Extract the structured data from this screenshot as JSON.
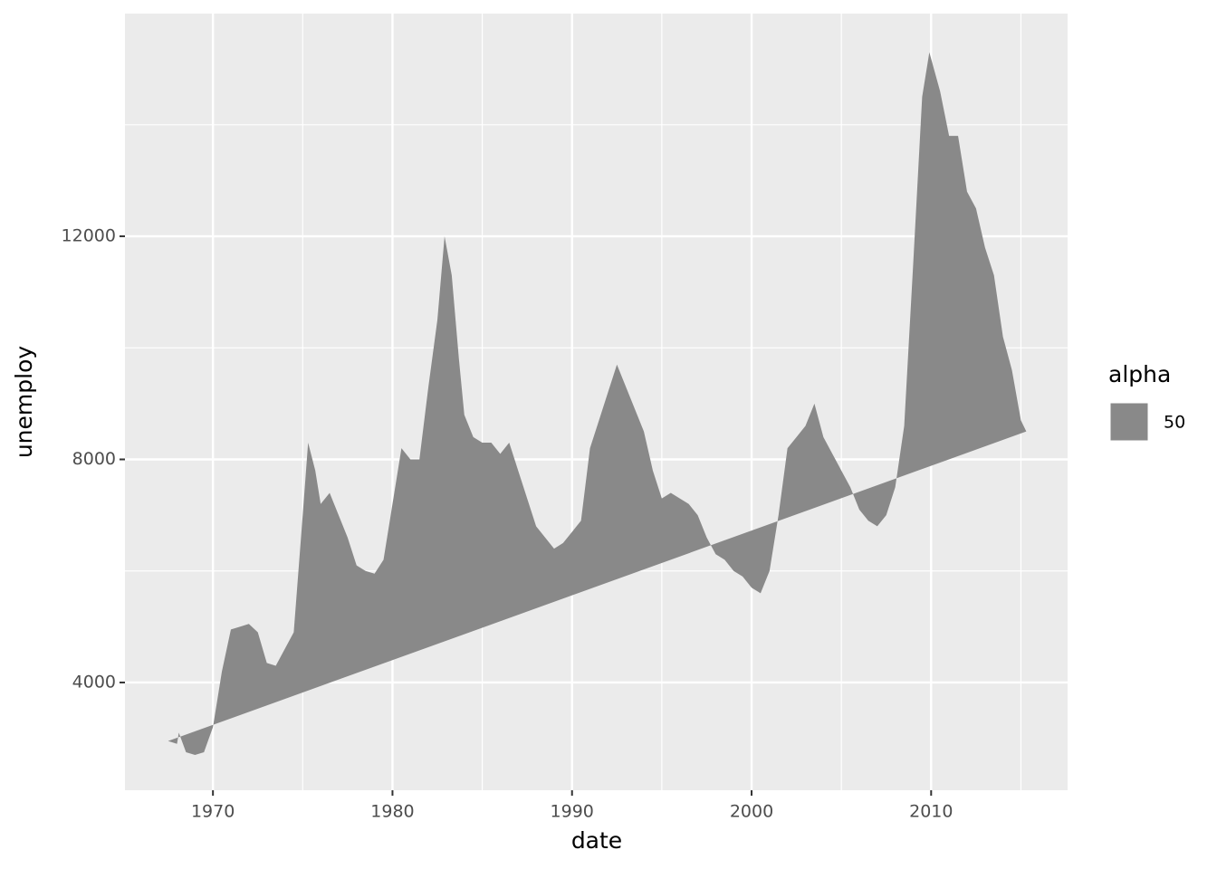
{
  "chart_data": {
    "type": "polygon",
    "x_label": "date",
    "y_label": "unemploy",
    "legend_title": "alpha",
    "xlim": [
      1965.1,
      2017.6
    ],
    "ylim": [
      2068,
      15993
    ],
    "xticks": [
      1970,
      1980,
      1990,
      2000,
      2010
    ],
    "yticks": [
      4000,
      8000,
      12000
    ],
    "x_minor_ticks": [
      1965,
      1975,
      1985,
      1995,
      2005,
      2015
    ],
    "y_minor_ticks": [
      6000,
      10000,
      14000
    ],
    "grid": true,
    "x": [
      1967.5,
      1968.0,
      1968.1,
      1968.5,
      1969.0,
      1969.5,
      1970.0,
      1970.5,
      1971.0,
      1971.5,
      1972.0,
      1972.5,
      1973.0,
      1973.5,
      1974.0,
      1974.5,
      1975.0,
      1975.3,
      1975.7,
      1976.0,
      1976.5,
      1977.0,
      1977.5,
      1978.0,
      1978.5,
      1979.0,
      1979.5,
      1980.0,
      1980.5,
      1981.0,
      1981.5,
      1982.0,
      1982.5,
      1982.9,
      1983.3,
      1983.7,
      1984.0,
      1984.5,
      1985.0,
      1985.5,
      1986.0,
      1986.5,
      1987.0,
      1987.5,
      1988.0,
      1988.5,
      1989.0,
      1989.5,
      1990.0,
      1990.5,
      1991.0,
      1991.5,
      1992.0,
      1992.5,
      1993.0,
      1993.5,
      1994.0,
      1994.5,
      1995.0,
      1995.5,
      1996.0,
      1996.5,
      1997.0,
      1997.5,
      1998.0,
      1998.5,
      1999.0,
      1999.5,
      2000.0,
      2000.5,
      2001.0,
      2001.5,
      2002.0,
      2002.5,
      2003.0,
      2003.5,
      2004.0,
      2004.5,
      2005.0,
      2005.5,
      2006.0,
      2006.5,
      2007.0,
      2007.5,
      2008.0,
      2008.5,
      2009.0,
      2009.5,
      2009.9,
      2010.5,
      2011.0,
      2011.5,
      2012.0,
      2012.5,
      2013.0,
      2013.5,
      2014.0,
      2014.5,
      2015.0,
      2015.3
    ],
    "series": [
      {
        "name": "50",
        "color": "#898989",
        "values": [
          2950,
          2900,
          3100,
          2750,
          2700,
          2750,
          3200,
          4200,
          4950,
          5000,
          5050,
          4900,
          4350,
          4300,
          4600,
          4900,
          7000,
          8300,
          7800,
          7200,
          7400,
          7000,
          6600,
          6100,
          6000,
          5950,
          6200,
          7200,
          8200,
          8000,
          8000,
          9300,
          10500,
          12000,
          11300,
          9800,
          8800,
          8400,
          8300,
          8300,
          8100,
          8300,
          7800,
          7300,
          6800,
          6600,
          6400,
          6500,
          6700,
          6900,
          8200,
          8700,
          9200,
          9700,
          9300,
          8900,
          8500,
          7800,
          7300,
          7400,
          7300,
          7200,
          7000,
          6600,
          6300,
          6200,
          6000,
          5900,
          5700,
          5600,
          6000,
          7000,
          8200,
          8400,
          8600,
          9000,
          8400,
          8100,
          7800,
          7500,
          7100,
          6900,
          6800,
          7000,
          7500,
          8600,
          11500,
          14500,
          15300,
          14600,
          13800,
          13800,
          12800,
          12500,
          11800,
          11300,
          10200,
          9600,
          8700,
          8500
        ]
      }
    ]
  }
}
